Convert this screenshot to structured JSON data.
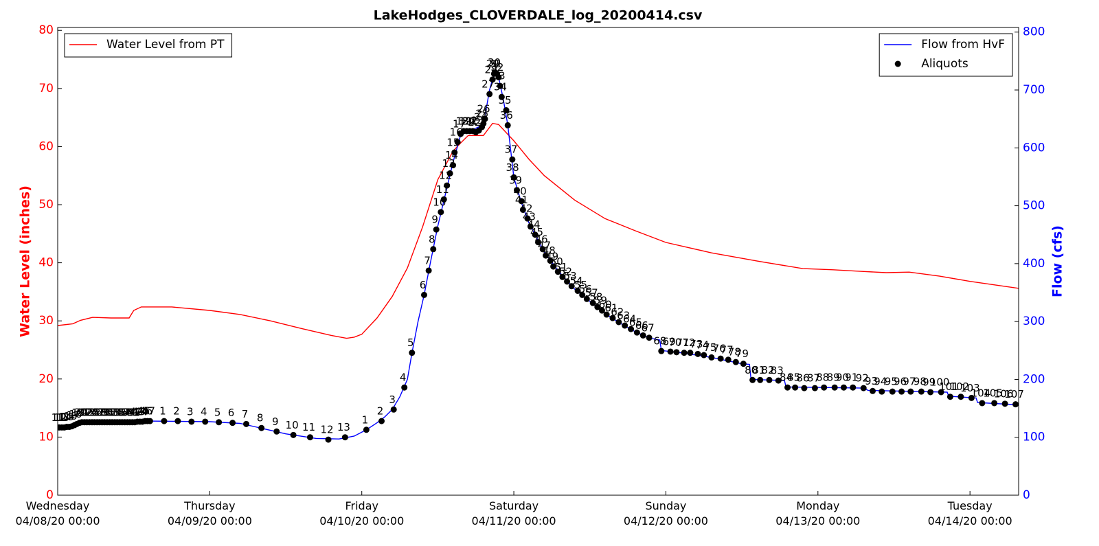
{
  "chart_data": {
    "type": "line",
    "title": "LakeHodges_CLOVERDALE_log_20200414.csv",
    "ylabel": "Water Level (inches)",
    "y2label": "Flow (cfs)",
    "xlim": [
      0,
      6.32
    ],
    "xticks": [
      {
        "value": 0,
        "label": "Wednesday\n04/08/20 00:00"
      },
      {
        "value": 1,
        "label": "Thursday\n04/09/20 00:00"
      },
      {
        "value": 2,
        "label": "Friday\n04/10/20 00:00"
      },
      {
        "value": 3,
        "label": "Saturday\n04/11/20 00:00"
      },
      {
        "value": 4,
        "label": "Sunday\n04/12/20 00:00"
      },
      {
        "value": 5,
        "label": "Monday\n04/13/20 00:00"
      },
      {
        "value": 6,
        "label": "Tuesday\n04/14/20 00:00"
      }
    ],
    "ylim": [
      0,
      80.5
    ],
    "yticks": [
      0,
      10,
      20,
      30,
      40,
      50,
      60,
      70,
      80
    ],
    "y2lim": [
      0,
      808
    ],
    "y2ticks": [
      0,
      100,
      200,
      300,
      400,
      500,
      600,
      700,
      800
    ],
    "legend_loc": "upper left",
    "legend2_loc": "upper right",
    "series": [
      {
        "name": "Water Level from PT",
        "type": "line",
        "color": "#ff0000",
        "x": [
          0,
          0.1,
          0.15,
          0.23,
          0.35,
          0.47,
          0.5,
          0.55,
          0.75,
          1.0,
          1.2,
          1.4,
          1.6,
          1.8,
          1.9,
          1.95,
          2.0,
          2.1,
          2.2,
          2.3,
          2.4,
          2.5,
          2.6,
          2.65,
          2.7,
          2.8,
          2.86,
          2.9,
          3.0,
          3.1,
          3.2,
          3.4,
          3.6,
          3.8,
          4.0,
          4.3,
          4.6,
          4.9,
          5.1,
          5.3,
          5.45,
          5.6,
          5.8,
          6.0,
          6.32
        ],
        "values": [
          29.2,
          29.5,
          30.1,
          30.6,
          30.5,
          30.5,
          31.8,
          32.4,
          32.4,
          31.8,
          31.1,
          30.0,
          28.7,
          27.5,
          27.0,
          27.2,
          27.7,
          30.5,
          34.2,
          39.1,
          46.2,
          54.3,
          59.2,
          60.6,
          61.9,
          61.9,
          64.0,
          63.8,
          61.0,
          57.8,
          55.0,
          50.8,
          47.6,
          45.5,
          43.5,
          41.7,
          40.3,
          39.0,
          38.8,
          38.5,
          38.3,
          38.4,
          37.7,
          36.8,
          35.6
        ]
      },
      {
        "name": "Flow from HvF",
        "type": "line",
        "color": "#0000ff",
        "axis": "y2",
        "x": [
          0,
          0.05,
          0.1,
          0.15,
          0.3,
          0.6,
          1.0,
          1.2,
          1.3,
          1.5,
          1.7,
          1.85,
          1.95,
          2.03,
          2.1,
          2.15,
          2.2,
          2.25,
          2.3,
          2.33,
          2.37,
          2.41,
          2.45,
          2.5,
          2.55,
          2.6,
          2.65,
          2.7,
          2.8,
          2.84,
          2.87,
          2.9,
          2.93,
          2.96,
          3.0,
          3.05,
          3.1,
          3.2,
          3.3,
          3.4,
          3.5,
          3.6,
          3.7,
          3.8,
          3.9,
          3.96,
          3.97,
          4.1,
          4.3,
          4.5,
          4.55,
          4.56,
          4.78,
          4.79,
          5.3,
          5.33,
          5.85,
          5.86,
          6.04,
          6.05,
          6.32
        ],
        "values": [
          115,
          117,
          122,
          126,
          127,
          128,
          127,
          124,
          118,
          106,
          98,
          97,
          102,
          113,
          125,
          135,
          148,
          170,
          200,
          246,
          300,
          346,
          400,
          465,
          520,
          575,
          622,
          628,
          640,
          700,
          728,
          722,
          685,
          640,
          549,
          505,
          470,
          420,
          385,
          356,
          335,
          314,
          297,
          282,
          271,
          268,
          250,
          246,
          238,
          227,
          226,
          200,
          198,
          187,
          185,
          181,
          178,
          171,
          168,
          160,
          156
        ]
      },
      {
        "name": "Aliquots",
        "type": "scatter",
        "color": "#000000",
        "axis": "y2",
        "x": [
          0.01,
          0.027,
          0.043,
          0.06,
          0.076,
          0.093,
          0.11,
          0.126,
          0.143,
          0.159,
          0.176,
          0.192,
          0.209,
          0.226,
          0.242,
          0.259,
          0.275,
          0.292,
          0.308,
          0.325,
          0.342,
          0.358,
          0.375,
          0.391,
          0.408,
          0.424,
          0.441,
          0.458,
          0.474,
          0.491,
          0.507,
          0.524,
          0.541,
          0.557,
          0.574,
          0.59,
          0.607,
          0.7,
          0.79,
          0.88,
          0.97,
          1.06,
          1.15,
          1.24,
          1.34,
          1.44,
          1.55,
          1.66,
          1.78,
          1.89,
          2.03,
          2.13,
          2.21,
          2.28,
          2.33,
          2.41,
          2.44,
          2.47,
          2.49,
          2.52,
          2.54,
          2.56,
          2.58,
          2.6,
          2.61,
          2.63,
          2.65,
          2.67,
          2.69,
          2.71,
          2.73,
          2.75,
          2.77,
          2.79,
          2.8,
          2.81,
          2.84,
          2.86,
          2.87,
          2.88,
          2.89,
          2.9,
          2.91,
          2.92,
          2.95,
          2.96,
          2.99,
          3.0,
          3.02,
          3.05,
          3.06,
          3.09,
          3.11,
          3.14,
          3.16,
          3.19,
          3.21,
          3.24,
          3.26,
          3.29,
          3.32,
          3.35,
          3.38,
          3.42,
          3.45,
          3.48,
          3.52,
          3.55,
          3.58,
          3.61,
          3.65,
          3.69,
          3.73,
          3.77,
          3.81,
          3.85,
          3.89,
          3.97,
          4.03,
          4.07,
          4.12,
          4.16,
          4.21,
          4.25,
          4.3,
          4.36,
          4.41,
          4.46,
          4.51,
          4.57,
          4.62,
          4.68,
          4.74,
          4.8,
          4.85,
          4.91,
          4.98,
          5.04,
          5.11,
          5.17,
          5.23,
          5.3,
          5.36,
          5.42,
          5.49,
          5.55,
          5.61,
          5.68,
          5.74,
          5.81,
          5.87,
          5.94,
          6.01,
          6.08,
          6.16,
          6.23,
          6.3
        ],
        "values": [
          117,
          117,
          117,
          118,
          118,
          119,
          121,
          123,
          125,
          126,
          126,
          126,
          126,
          126,
          126,
          126,
          126,
          126,
          126,
          126,
          126,
          126,
          126,
          126,
          126,
          126,
          126,
          126,
          126,
          126,
          126,
          127,
          127,
          127,
          128,
          128,
          128,
          128,
          128,
          127,
          127,
          126,
          125,
          123,
          116,
          110,
          104,
          100,
          96,
          100,
          113,
          128,
          148,
          186,
          246,
          346,
          388,
          425,
          459,
          489,
          511,
          535,
          556,
          570,
          592,
          610,
          624,
          629,
          629,
          629,
          629,
          627,
          630,
          636,
          642,
          650,
          693,
          718,
          728,
          730,
          728,
          722,
          707,
          688,
          665,
          639,
          580,
          549,
          527,
          508,
          493,
          478,
          464,
          450,
          437,
          425,
          414,
          405,
          395,
          386,
          377,
          369,
          361,
          353,
          346,
          339,
          332,
          325,
          319,
          312,
          306,
          299,
          293,
          287,
          281,
          276,
          272,
          249,
          248,
          247,
          246,
          246,
          244,
          242,
          238,
          236,
          234,
          230,
          227,
          199,
          199,
          199,
          198,
          186,
          186,
          185,
          185,
          186,
          186,
          186,
          186,
          185,
          180,
          179,
          179,
          179,
          179,
          179,
          178,
          178,
          170,
          170,
          168,
          159,
          159,
          158,
          157
        ],
        "point_labels": [
          11,
          12,
          13,
          14,
          15,
          16,
          17,
          18,
          19,
          20,
          21,
          22,
          23,
          24,
          25,
          26,
          27,
          28,
          29,
          30,
          31,
          32,
          33,
          34,
          35,
          36,
          37,
          38,
          39,
          40,
          41,
          42,
          43,
          44,
          45,
          46,
          47,
          1,
          2,
          3,
          4,
          5,
          6,
          7,
          8,
          9,
          10,
          11,
          12,
          13,
          1,
          2,
          3,
          4,
          5,
          6,
          7,
          8,
          9,
          10,
          11,
          12,
          13,
          14,
          15,
          16,
          17,
          18,
          19,
          20,
          21,
          22,
          23,
          24,
          25,
          26,
          27,
          28,
          29,
          30,
          31,
          32,
          33,
          34,
          35,
          36,
          37,
          38,
          39,
          40,
          41,
          42,
          43,
          44,
          45,
          46,
          47,
          48,
          49,
          50,
          51,
          52,
          53,
          54,
          55,
          56,
          57,
          58,
          59,
          60,
          61,
          62,
          63,
          64,
          65,
          66,
          67,
          68,
          69,
          70,
          71,
          72,
          73,
          74,
          75,
          76,
          77,
          78,
          79,
          80,
          81,
          82,
          83,
          84,
          85,
          86,
          87,
          88,
          89,
          90,
          91,
          92,
          93,
          94,
          95,
          96,
          97,
          98,
          99,
          100,
          101,
          102,
          103,
          104,
          105,
          106,
          107
        ]
      }
    ]
  }
}
